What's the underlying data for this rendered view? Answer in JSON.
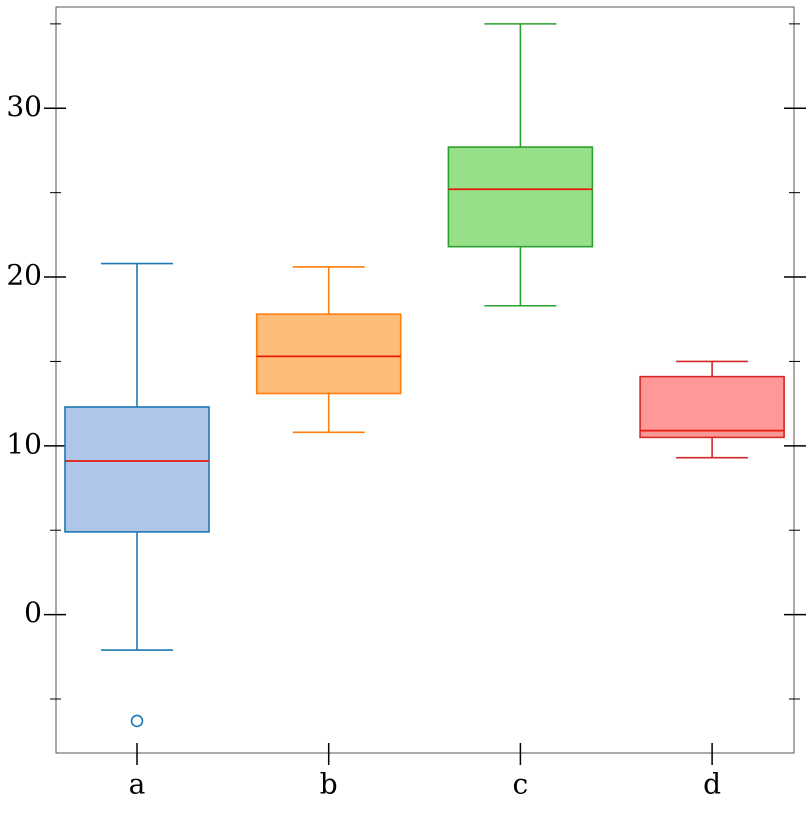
{
  "chart_data": {
    "type": "box",
    "categories": [
      "a",
      "b",
      "c",
      "d"
    ],
    "boxes": [
      {
        "whislo": -2.1,
        "q1": 4.9,
        "median": 9.1,
        "q3": 12.3,
        "whishi": 20.8,
        "fliers": [
          -6.3
        ],
        "color": "#1f77b4",
        "fill": "#aec7e8"
      },
      {
        "whislo": 10.8,
        "q1": 13.1,
        "median": 15.3,
        "q3": 17.8,
        "whishi": 20.6,
        "fliers": [],
        "color": "#ff7f0e",
        "fill": "#ffbb78"
      },
      {
        "whislo": 18.3,
        "q1": 21.8,
        "median": 25.2,
        "q3": 27.7,
        "whishi": 35.0,
        "fliers": [],
        "color": "#2ca02c",
        "fill": "#98df8a"
      },
      {
        "whislo": 9.3,
        "q1": 10.5,
        "median": 10.9,
        "q3": 14.1,
        "whishi": 15.0,
        "fliers": [],
        "color": "#d62728",
        "fill": "#ff9896"
      }
    ],
    "median_color": "#e8190e",
    "ylim": [
      -8.2,
      36.0
    ],
    "yticks": [
      0,
      10,
      20,
      30
    ],
    "yminorticks": [
      -5,
      5,
      15,
      25,
      35
    ]
  }
}
